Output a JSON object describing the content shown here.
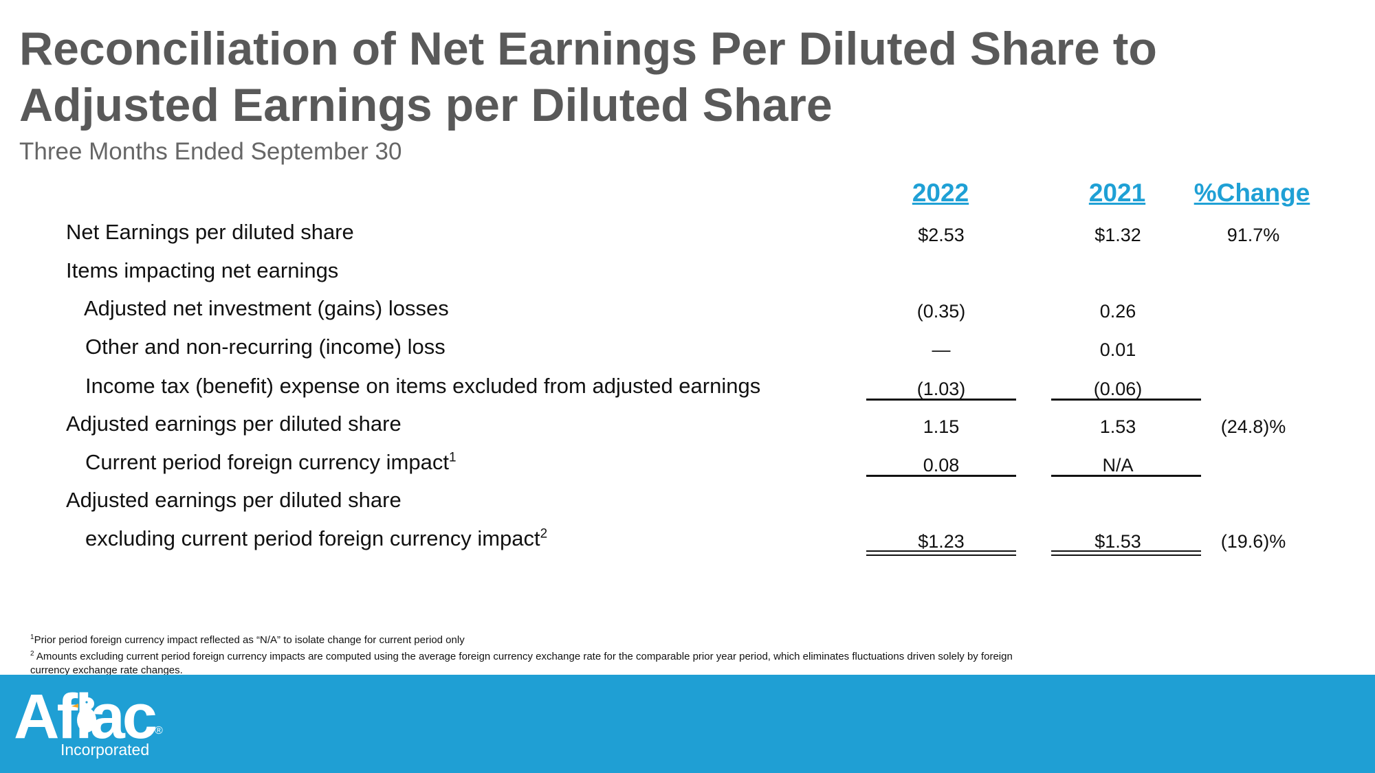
{
  "title": "Reconciliation of Net Earnings Per Diluted Share to Adjusted Earnings per Diluted Share",
  "subtitle": "Three Months Ended September 30",
  "columns": {
    "c1": "2022",
    "c2": "2021",
    "c3": "%Change"
  },
  "rows": [
    {
      "label": "Net Earnings per diluted share",
      "v2022": "$2.53",
      "v2021": "$1.32",
      "change": "91.7%"
    },
    {
      "label": "Items impacting net earnings",
      "v2022": "",
      "v2021": "",
      "change": ""
    },
    {
      "label": "Adjusted net investment (gains) losses",
      "v2022": "(0.35)",
      "v2021": "0.26",
      "change": ""
    },
    {
      "label": "Other and non-recurring (income) loss",
      "v2022": "—",
      "v2021": "0.01",
      "change": ""
    },
    {
      "label": "Income tax (benefit) expense on items excluded from adjusted earnings",
      "v2022": "(1.03)",
      "v2021": "(0.06)",
      "change": ""
    },
    {
      "label": "Adjusted earnings per diluted share",
      "v2022": "1.15",
      "v2021": "1.53",
      "change": "(24.8)%"
    },
    {
      "label": "Current period foreign currency impact",
      "sup": "1",
      "v2022": "0.08",
      "v2021": "N/A",
      "change": ""
    },
    {
      "label": "Adjusted earnings per diluted share",
      "v2022": "",
      "v2021": "",
      "change": ""
    },
    {
      "label": "excluding current period foreign currency impact",
      "sup": "2",
      "v2022": "$1.23",
      "v2021": "$1.53",
      "change": "(19.6)%"
    }
  ],
  "footnotes": {
    "f1_sup": "1",
    "f1": "Prior period foreign currency impact reflected as “N/A” to isolate change for current period only",
    "f2_sup": "2",
    "f2": " Amounts excluding current period foreign currency impacts are computed using the average foreign currency exchange rate for the comparable prior year period, which eliminates fluctuations driven solely by foreign currency exchange rate changes."
  },
  "logo": {
    "text": "Aflac",
    "registered": "®",
    "subtext": "Incorporated",
    "icon": "duck-icon"
  },
  "colors": {
    "accent": "#1fa0d5",
    "title": "#595959",
    "bar": "#1f9fd4"
  }
}
